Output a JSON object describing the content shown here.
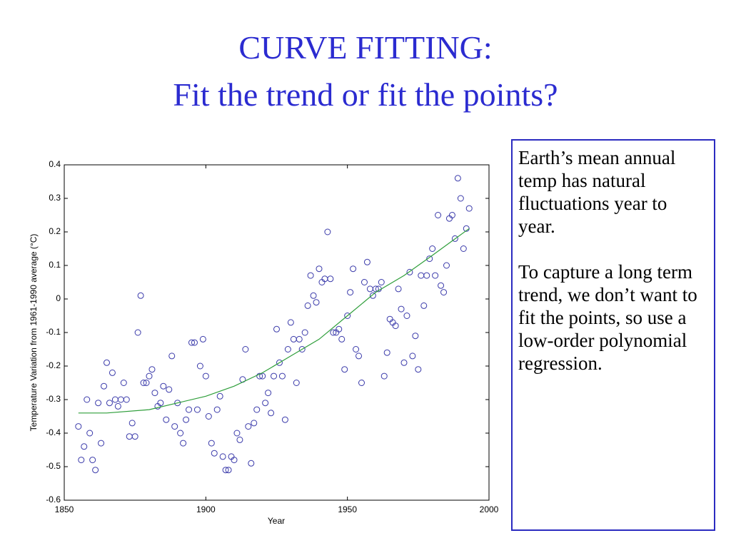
{
  "slide": {
    "title": [
      "CURVE FITTING:",
      "Fit the trend or fit the points?"
    ],
    "text": [
      "Earth’s mean annual temp has natural fluctuations year to year.",
      "To capture a long term trend, we don’t want to fit the points, so use a low-order polynomial regression."
    ]
  },
  "chart_data": {
    "type": "scatter",
    "xlabel": "Year",
    "ylabel": "Temperature Variation from 1961-1990 average (°C)",
    "xlim": [
      1850,
      2000
    ],
    "xticks": [
      1850,
      1900,
      1950,
      2000
    ],
    "ylim": [
      -0.6,
      0.4
    ],
    "yticks": [
      0.4,
      0.3,
      0.2,
      0.1,
      0,
      -0.1,
      -0.2,
      -0.3,
      -0.4,
      -0.5,
      -0.6
    ],
    "series": [
      {
        "type": "scatter",
        "color": "#3a3aaa",
        "x": [
          1855,
          1856,
          1857,
          1858,
          1859,
          1860,
          1861,
          1862,
          1863,
          1864,
          1865,
          1866,
          1867,
          1868,
          1869,
          1870,
          1871,
          1872,
          1873,
          1874,
          1875,
          1876,
          1877,
          1878,
          1879,
          1880,
          1881,
          1882,
          1883,
          1884,
          1885,
          1886,
          1887,
          1888,
          1889,
          1890,
          1891,
          1892,
          1893,
          1894,
          1895,
          1896,
          1897,
          1898,
          1899,
          1900,
          1901,
          1902,
          1903,
          1904,
          1905,
          1906,
          1907,
          1908,
          1909,
          1910,
          1911,
          1912,
          1913,
          1914,
          1915,
          1916,
          1917,
          1918,
          1919,
          1920,
          1921,
          1922,
          1923,
          1924,
          1925,
          1926,
          1927,
          1928,
          1929,
          1930,
          1931,
          1932,
          1933,
          1934,
          1935,
          1936,
          1937,
          1938,
          1939,
          1940,
          1941,
          1942,
          1943,
          1944,
          1945,
          1946,
          1947,
          1948,
          1949,
          1950,
          1951,
          1952,
          1953,
          1954,
          1955,
          1956,
          1957,
          1958,
          1959,
          1960,
          1961,
          1962,
          1963,
          1964,
          1965,
          1966,
          1967,
          1968,
          1969,
          1970,
          1971,
          1972,
          1973,
          1974,
          1975,
          1976,
          1977,
          1978,
          1979,
          1980,
          1981,
          1982,
          1983,
          1984,
          1985,
          1986,
          1987,
          1988,
          1989,
          1990,
          1991,
          1992,
          1993
        ],
        "values": [
          -0.38,
          -0.48,
          -0.44,
          -0.3,
          -0.4,
          -0.48,
          -0.51,
          -0.31,
          -0.43,
          -0.26,
          -0.19,
          -0.31,
          -0.22,
          -0.3,
          -0.32,
          -0.3,
          -0.25,
          -0.3,
          -0.41,
          -0.37,
          -0.41,
          -0.1,
          0.01,
          -0.25,
          -0.25,
          -0.23,
          -0.21,
          -0.28,
          -0.32,
          -0.31,
          -0.26,
          -0.36,
          -0.27,
          -0.17,
          -0.38,
          -0.31,
          -0.4,
          -0.43,
          -0.36,
          -0.33,
          -0.13,
          -0.13,
          -0.33,
          -0.2,
          -0.12,
          -0.23,
          -0.35,
          -0.43,
          -0.46,
          -0.33,
          -0.29,
          -0.47,
          -0.51,
          -0.51,
          -0.47,
          -0.48,
          -0.4,
          -0.42,
          -0.24,
          -0.15,
          -0.38,
          -0.49,
          -0.37,
          -0.33,
          -0.23,
          -0.23,
          -0.31,
          -0.28,
          -0.34,
          -0.23,
          -0.09,
          -0.19,
          -0.23,
          -0.36,
          -0.15,
          -0.07,
          -0.12,
          -0.25,
          -0.12,
          -0.15,
          -0.1,
          -0.02,
          0.07,
          0.01,
          -0.01,
          0.09,
          0.05,
          0.06,
          0.2,
          0.06,
          -0.1,
          -0.1,
          -0.09,
          -0.12,
          -0.21,
          -0.05,
          0.02,
          0.09,
          -0.15,
          -0.17,
          -0.25,
          0.05,
          0.11,
          0.03,
          0.01,
          0.03,
          0.03,
          0.05,
          -0.23,
          -0.16,
          -0.06,
          -0.07,
          -0.08,
          0.03,
          -0.03,
          -0.19,
          -0.05,
          0.08,
          -0.17,
          -0.11,
          -0.21,
          0.07,
          -0.02,
          0.07,
          0.12,
          0.15,
          0.07,
          0.25,
          0.04,
          0.02,
          0.1,
          0.24,
          0.25,
          0.18,
          0.36,
          0.3,
          0.15,
          0.21,
          0.27
        ]
      },
      {
        "type": "line",
        "color": "#2e9e3a",
        "x": [
          1855,
          1865,
          1880,
          1890,
          1900,
          1910,
          1920,
          1930,
          1940,
          1950,
          1960,
          1970,
          1980,
          1993
        ],
        "values": [
          -0.34,
          -0.34,
          -0.33,
          -0.31,
          -0.29,
          -0.26,
          -0.22,
          -0.17,
          -0.12,
          -0.05,
          0.02,
          0.07,
          0.13,
          0.21
        ]
      }
    ]
  }
}
